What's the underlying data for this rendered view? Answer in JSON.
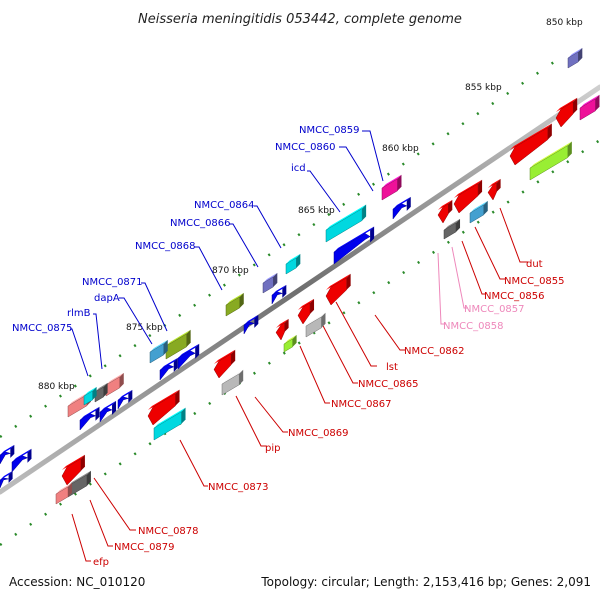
{
  "title": "Neisseria meningitidis 053442, complete genome",
  "footer": {
    "accession": "Accession: NC_010120",
    "summary": "Topology: circular; Length: 2,153,416 bp; Genes: 2,091"
  },
  "ruler": [
    "850 kbp",
    "855 kbp",
    "860 kbp",
    "865 kbp",
    "870 kbp",
    "875 kbp",
    "880 kbp"
  ],
  "colors": {
    "forward_label": "#0000cc",
    "reverse_label": "#cc0000",
    "pseudo_label": "#ee88bb",
    "backbone": "#888888"
  },
  "labels_forward": [
    "NMCC_0859",
    "NMCC_0860",
    "icd",
    "NMCC_0864",
    "NMCC_0866",
    "NMCC_0868",
    "NMCC_0871",
    "dapA",
    "rlmB",
    "NMCC_0875"
  ],
  "labels_reverse": [
    "dut",
    "NMCC_0855",
    "NMCC_0856",
    "NMCC_0857",
    "NMCC_0858",
    "NMCC_0862",
    "lst",
    "NMCC_0865",
    "NMCC_0867",
    "NMCC_0869",
    "pip",
    "NMCC_0873",
    "NMCC_0878",
    "NMCC_0879",
    "efp"
  ]
}
